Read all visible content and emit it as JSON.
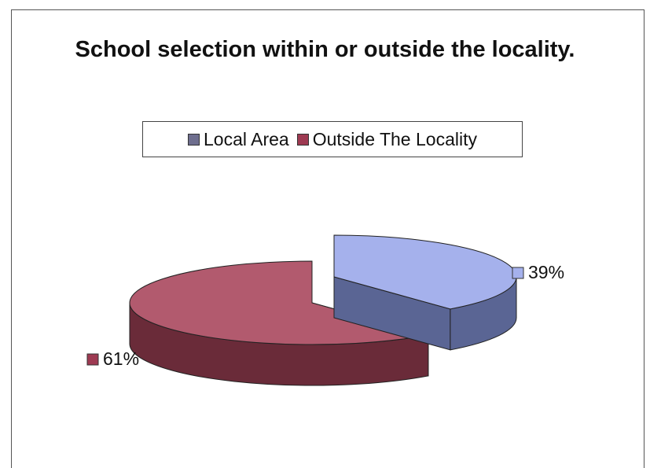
{
  "chart_data": {
    "type": "pie",
    "title": "School selection within or outside the locality.",
    "categories": [
      "Local Area",
      "Outside The Locality"
    ],
    "values": [
      39,
      61
    ],
    "value_labels": [
      "39%",
      "61%"
    ],
    "colors": {
      "Local Area": {
        "legend": "#6e6e8e",
        "top": "#a5b1ec",
        "side": "#5a6594"
      },
      "Outside The Locality": {
        "legend": "#9e3a52",
        "top": "#b25a6e",
        "side": "#6a2b39"
      }
    },
    "legend_placement": "top",
    "style": "3d-exploded"
  }
}
